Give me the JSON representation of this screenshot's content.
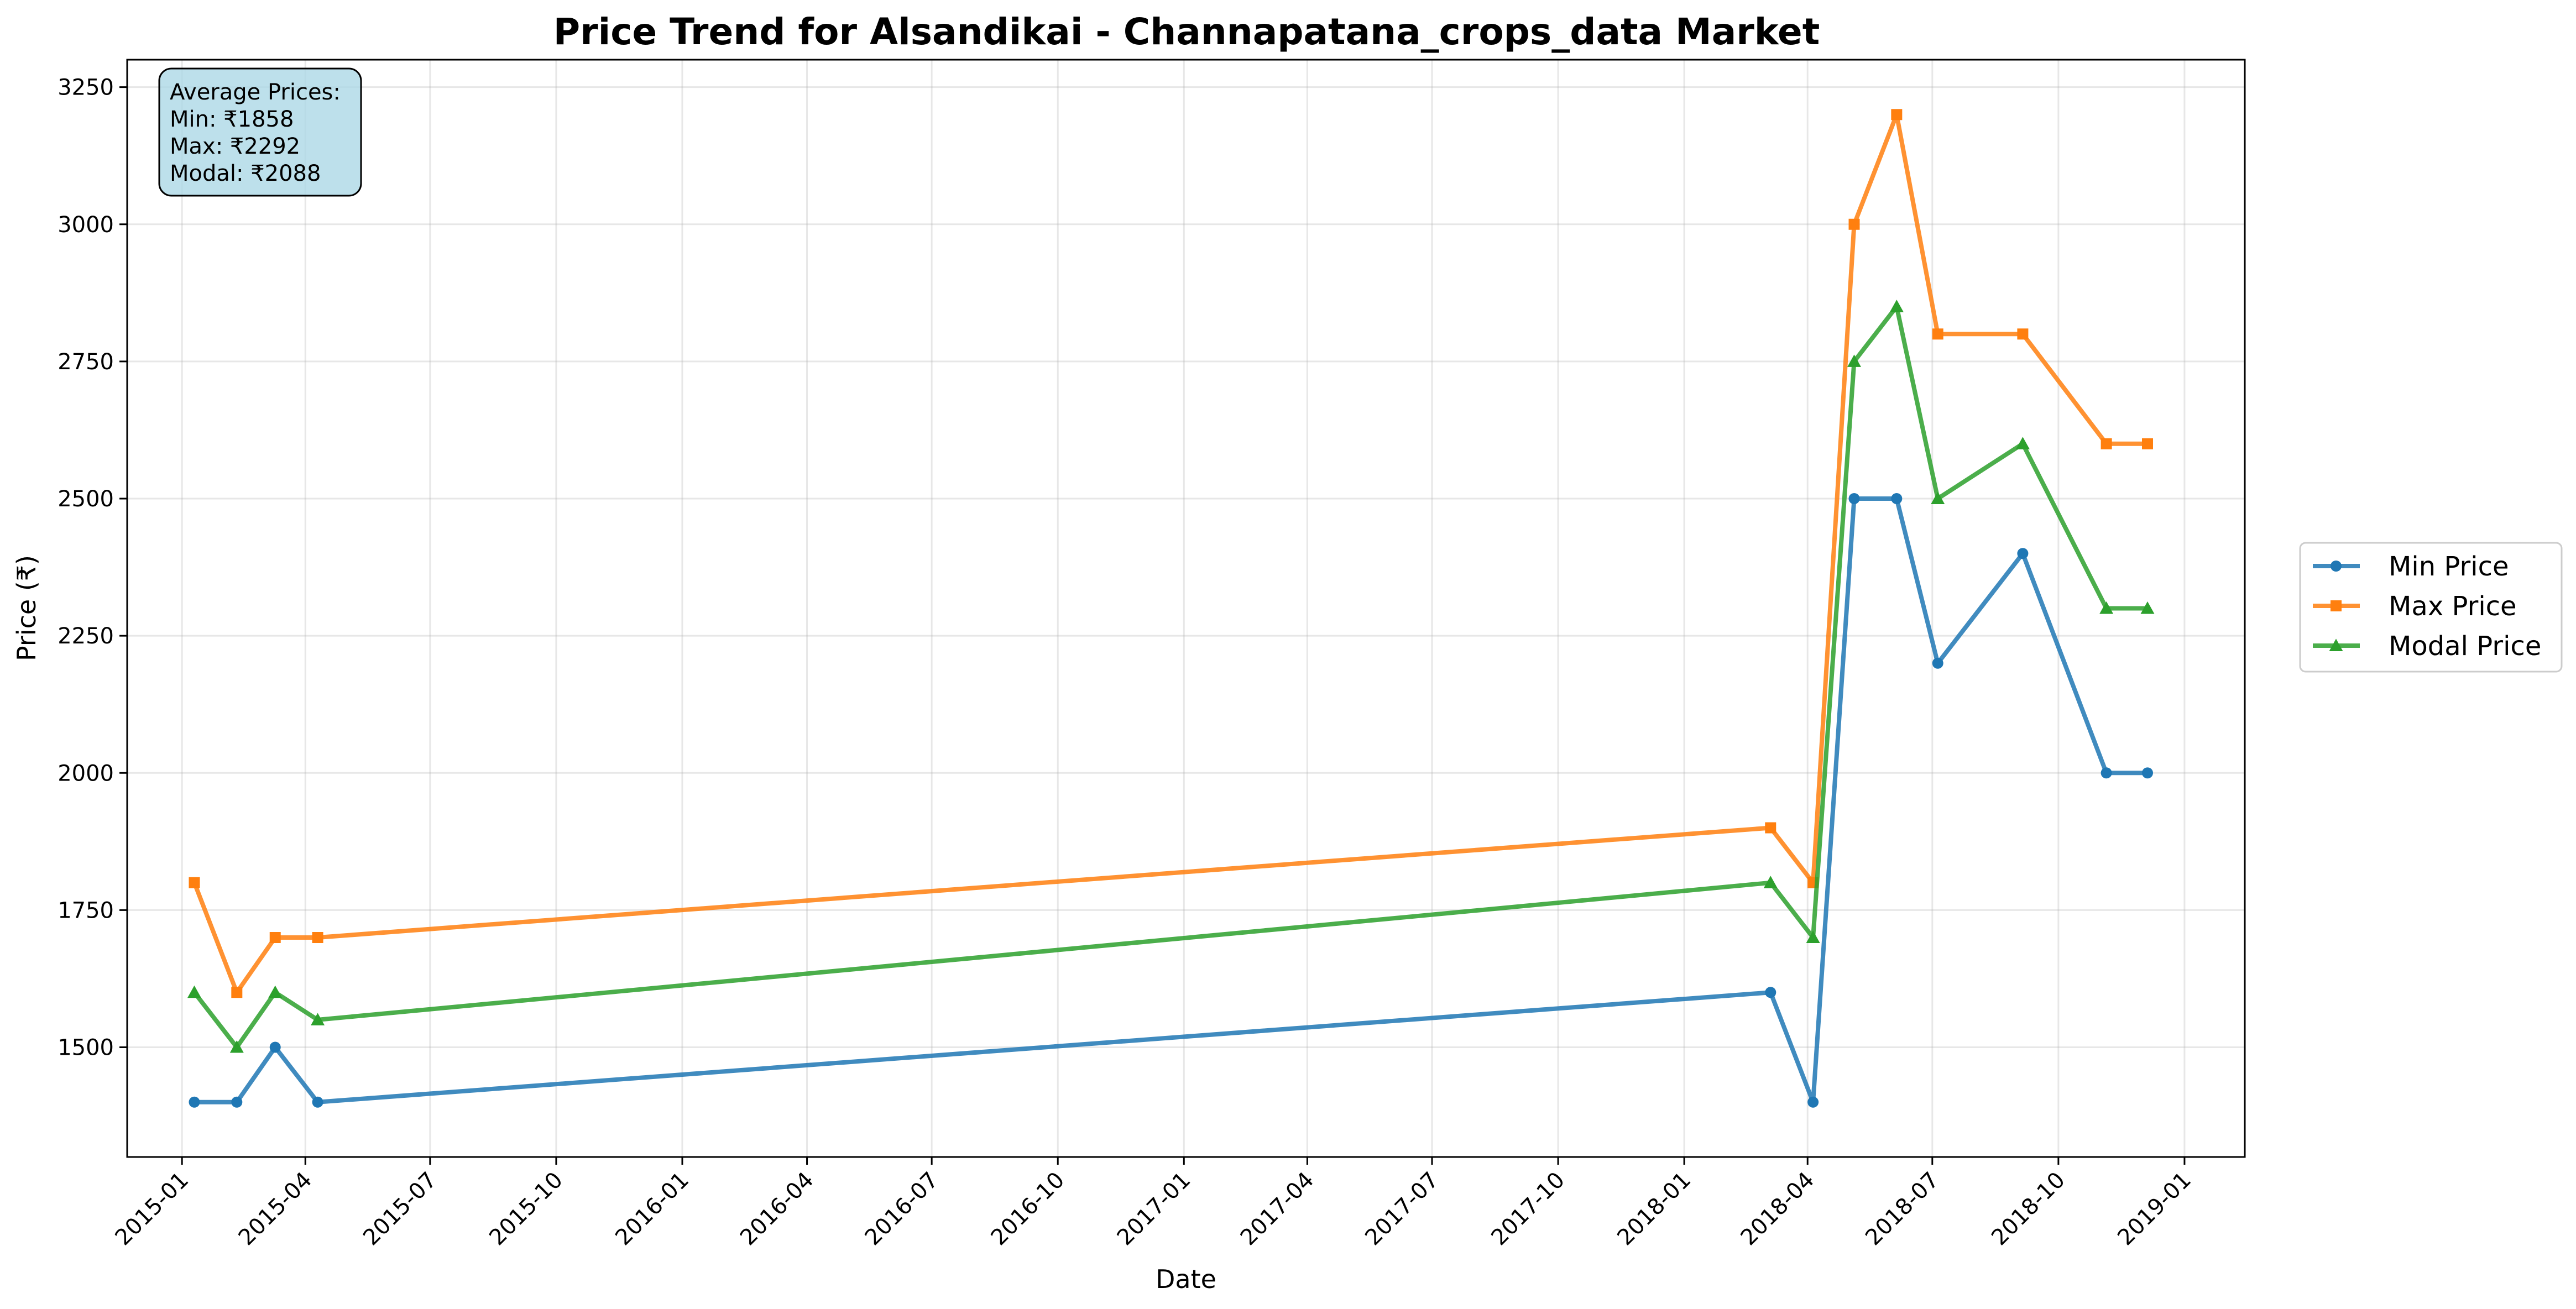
{
  "chart_data": {
    "type": "line",
    "title": "Price Trend for Alsandikai - Channapatana_crops_data Market",
    "xlabel": "Date",
    "ylabel": "Price (₹)",
    "grid": true,
    "legend_placement": "right-outside",
    "x_axis_type": "date",
    "xlim": [
      "2014-11-22",
      "2019-02-14"
    ],
    "ylim": [
      1300,
      3300
    ],
    "x_ticks": [
      "2015-01",
      "2015-04",
      "2015-07",
      "2015-10",
      "2016-01",
      "2016-04",
      "2016-07",
      "2016-10",
      "2017-01",
      "2017-04",
      "2017-07",
      "2017-10",
      "2018-01",
      "2018-04",
      "2018-07",
      "2018-10",
      "2019-01"
    ],
    "y_ticks": [
      1500,
      1750,
      2000,
      2250,
      2500,
      2750,
      3000,
      3250
    ],
    "x": [
      "2015-01-10",
      "2015-02-10",
      "2015-03-10",
      "2015-04-10",
      "2018-03-05",
      "2018-04-05",
      "2018-05-05",
      "2018-06-05",
      "2018-07-05",
      "2018-09-05",
      "2018-11-05",
      "2018-12-05"
    ],
    "series": [
      {
        "name": "Min Price",
        "color": "#1f77b4",
        "marker": "circle",
        "values": [
          1400,
          1400,
          1500,
          1400,
          1600,
          1400,
          2500,
          2500,
          2200,
          2400,
          2000,
          2000
        ]
      },
      {
        "name": "Max Price",
        "color": "#ff7f0e",
        "marker": "square",
        "values": [
          1800,
          1600,
          1700,
          1700,
          1900,
          1800,
          3000,
          3200,
          2800,
          2800,
          2600,
          2600
        ]
      },
      {
        "name": "Modal Price",
        "color": "#2ca02c",
        "marker": "triangle",
        "values": [
          1600,
          1500,
          1600,
          1550,
          1800,
          1700,
          2750,
          2850,
          2500,
          2600,
          2300,
          2300
        ]
      }
    ],
    "annotation": {
      "lines": [
        "Average Prices:",
        "Min: ₹1858",
        "Max: ₹2292",
        "Modal: ₹2088"
      ],
      "placement": "top-left",
      "background": "#add8e6"
    }
  }
}
